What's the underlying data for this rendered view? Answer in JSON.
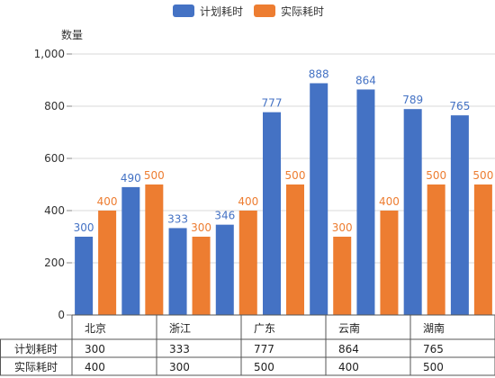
{
  "chart_data": {
    "type": "bar",
    "ylabel": "数量",
    "ylim": [
      0,
      1000
    ],
    "yticks": [
      0,
      200,
      400,
      600,
      800,
      1000
    ],
    "ytick_labels": [
      "0",
      "200",
      "400",
      "600",
      "800",
      "1,000"
    ],
    "legend_position": "top-center",
    "categories": [
      "北京",
      "",
      "浙江",
      "",
      "广东",
      "",
      "云南",
      "",
      "湖南"
    ],
    "series": [
      {
        "name": "计划耗时",
        "color": "#4472c4",
        "values": [
          300,
          490,
          333,
          346,
          777,
          888,
          864,
          789,
          765
        ]
      },
      {
        "name": "实际耗时",
        "color": "#ed7d31",
        "values": [
          400,
          500,
          300,
          400,
          500,
          300,
          400,
          500,
          500
        ]
      }
    ],
    "data_table": {
      "category_labels": [
        "北京",
        "浙江",
        "广东",
        "云南",
        "湖南"
      ],
      "rows": [
        {
          "name": "计划耗时",
          "values": [
            "300",
            "333",
            "777",
            "864",
            "765"
          ]
        },
        {
          "name": "实际耗时",
          "values": [
            "400",
            "300",
            "500",
            "400",
            "500"
          ]
        }
      ]
    }
  }
}
